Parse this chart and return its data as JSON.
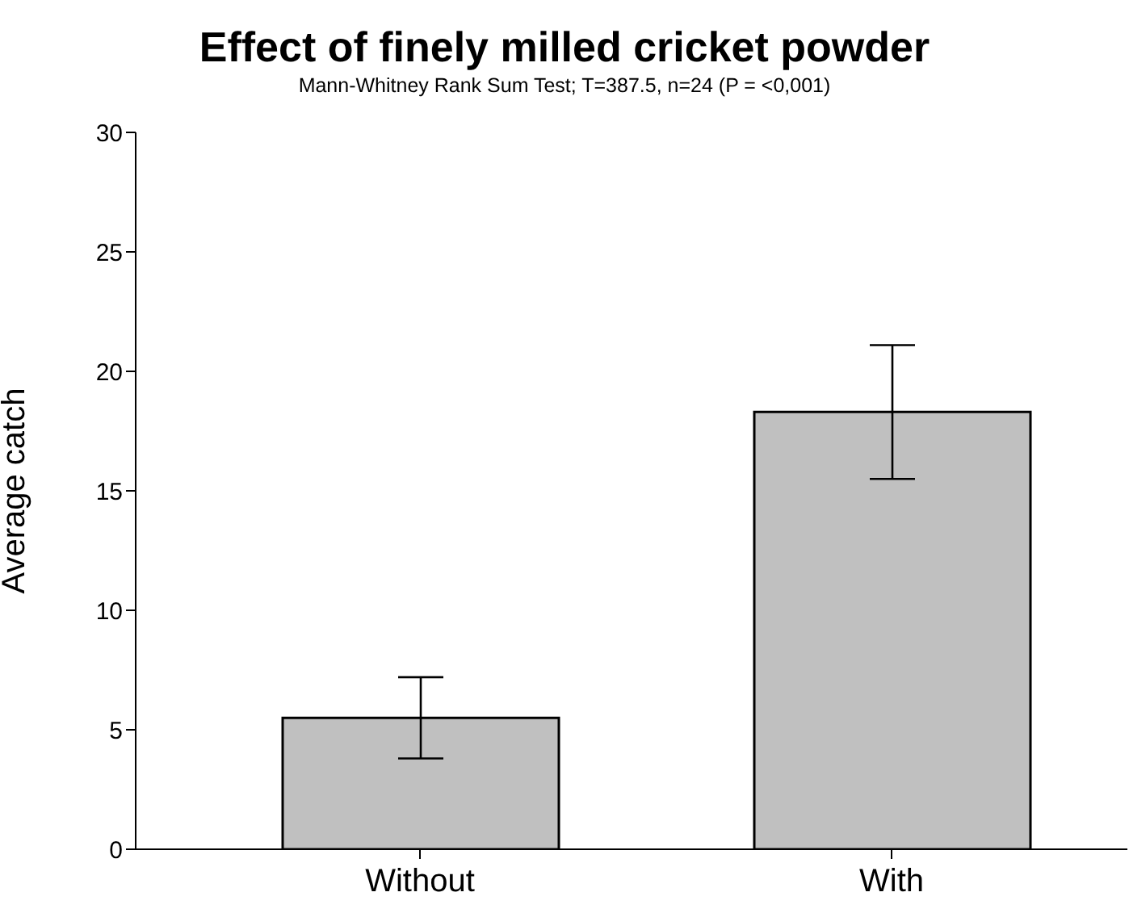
{
  "chart_data": {
    "type": "bar",
    "title": "Effect of finely milled cricket powder",
    "subtitle": "Mann-Whitney Rank Sum Test; T=387.5, n=24 (P = <0,001)",
    "ylabel": "Average catch",
    "categories": [
      "Without",
      "With"
    ],
    "values": [
      5.5,
      18.3
    ],
    "errors": [
      1.7,
      2.8
    ],
    "color": "#c0c0c0",
    "ylim": [
      0,
      30
    ],
    "yticks": [
      0,
      5,
      10,
      15,
      20,
      25,
      30
    ],
    "grid": false,
    "legend": false
  }
}
